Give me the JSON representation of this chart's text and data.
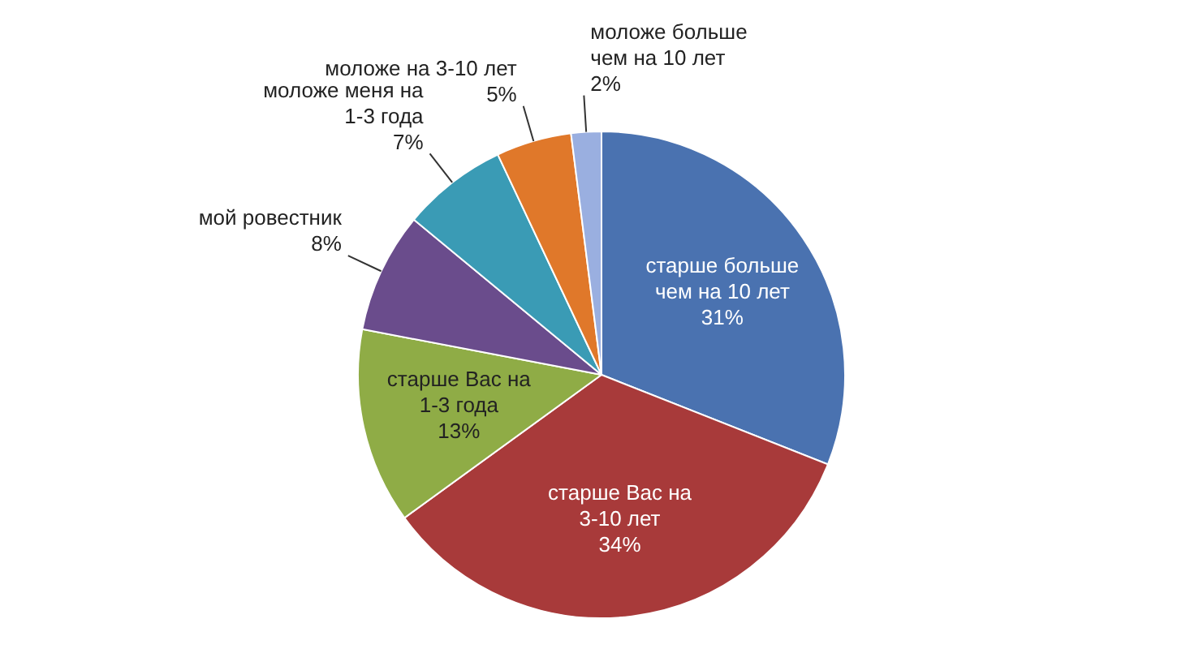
{
  "chart_data": {
    "type": "pie",
    "categories": [
      "старше больше чем на 10 лет",
      "старше Вас на 3-10 лет",
      "старше Вас на 1-3 года",
      "мой ровестник",
      "моложе меня на 1-3 года",
      "моложе на 3-10 лет",
      "моложе больше чем на 10 лет"
    ],
    "values": [
      31,
      34,
      13,
      8,
      7,
      5,
      2
    ],
    "value_labels": [
      "31%",
      "34%",
      "13%",
      "8%",
      "7%",
      "5%",
      "2%"
    ],
    "colors": [
      "#4a72b0",
      "#a83a3a",
      "#8fac46",
      "#6a4c8c",
      "#3a9bb5",
      "#e0782a",
      "#9aafe0"
    ],
    "legend": false
  }
}
